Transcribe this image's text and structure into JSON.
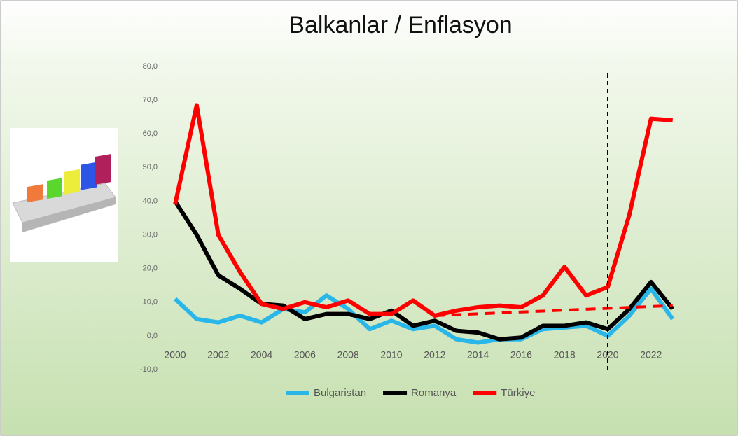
{
  "chart_data": {
    "type": "line",
    "title": "Balkanlar / Enflasyon",
    "x": [
      2000,
      2001,
      2002,
      2003,
      2004,
      2005,
      2006,
      2007,
      2008,
      2009,
      2010,
      2011,
      2012,
      2013,
      2014,
      2015,
      2016,
      2017,
      2018,
      2019,
      2020,
      2021,
      2022,
      2023
    ],
    "series": [
      {
        "name": "Bulgaristan",
        "color": "#29b6e8",
        "values": [
          11,
          5,
          4,
          6,
          4,
          8,
          7,
          12,
          8,
          2,
          4.5,
          2,
          3,
          -1,
          -2,
          -1,
          -1,
          2,
          2.5,
          3,
          0,
          6,
          14,
          5
        ]
      },
      {
        "name": "Romanya",
        "color": "#000000",
        "values": [
          40,
          30,
          18,
          14,
          9.5,
          9,
          5,
          6.5,
          6.5,
          5,
          7.5,
          3,
          4.5,
          1.5,
          1,
          -1,
          -0.5,
          3,
          3,
          4,
          2,
          8,
          16,
          8
        ]
      },
      {
        "name": "Türkiye",
        "color": "#ff0000",
        "values": [
          39,
          68.5,
          30,
          19,
          9.5,
          8,
          10,
          8.5,
          10.5,
          6.5,
          6.5,
          10.5,
          6,
          7.5,
          8.5,
          9,
          8.5,
          12,
          20.5,
          12,
          14.5,
          36,
          64.5,
          64
        ]
      }
    ],
    "trend": {
      "x": [
        2012,
        2023
      ],
      "values": [
        6,
        9
      ],
      "color": "#ff0000"
    },
    "vline": {
      "x": 2020,
      "color": "#000000"
    },
    "xlim": [
      2000,
      2023
    ],
    "xticks": [
      2000,
      2002,
      2004,
      2006,
      2008,
      2010,
      2012,
      2014,
      2016,
      2018,
      2020,
      2022
    ],
    "ylim": [
      -10,
      80
    ],
    "yticks": [
      {
        "value": -10,
        "label": "-10,0"
      },
      {
        "value": 0,
        "label": "0,0"
      },
      {
        "value": 10,
        "label": "10,0"
      },
      {
        "value": 20,
        "label": "20,0"
      },
      {
        "value": 30,
        "label": "30,0"
      },
      {
        "value": 40,
        "label": "40,0"
      },
      {
        "value": 50,
        "label": "50,0"
      },
      {
        "value": 60,
        "label": "60,0"
      },
      {
        "value": 70,
        "label": "70,0"
      },
      {
        "value": 80,
        "label": "80,0"
      }
    ],
    "legend": "bottom"
  }
}
